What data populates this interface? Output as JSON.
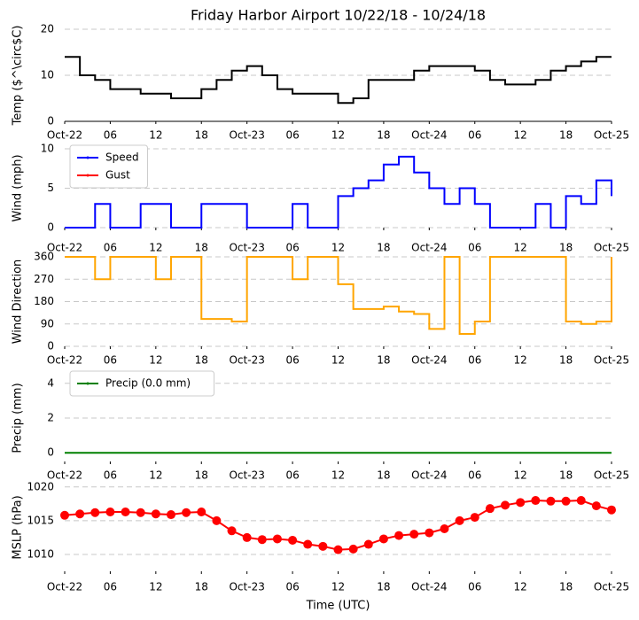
{
  "chart_data": [
    {
      "type": "line",
      "step": true,
      "title": "Friday Harbor Airport 10/22/18 - 10/24/18",
      "ylabel": "Temp ($^\\circ$C)",
      "x": [
        0,
        2,
        4,
        6,
        8,
        10,
        12,
        14,
        16,
        18,
        20,
        22,
        24,
        26,
        28,
        30,
        32,
        34,
        36,
        38,
        40,
        42,
        44,
        46,
        48,
        50,
        52,
        54,
        56,
        58,
        60,
        62,
        64,
        66,
        68,
        70,
        72
      ],
      "xlim": [
        0,
        72
      ],
      "xticks": [
        {
          "value": 0,
          "label": "Oct-22"
        },
        {
          "value": 6,
          "label": "06"
        },
        {
          "value": 12,
          "label": "12"
        },
        {
          "value": 18,
          "label": "18"
        },
        {
          "value": 24,
          "label": "Oct-23"
        },
        {
          "value": 30,
          "label": "06"
        },
        {
          "value": 36,
          "label": "12"
        },
        {
          "value": 42,
          "label": "18"
        },
        {
          "value": 48,
          "label": "Oct-24"
        },
        {
          "value": 54,
          "label": "06"
        },
        {
          "value": 60,
          "label": "12"
        },
        {
          "value": 66,
          "label": "18"
        },
        {
          "value": 72,
          "label": "Oct-25"
        }
      ],
      "ylim": [
        0,
        20
      ],
      "yticks": [
        0,
        10,
        20
      ],
      "grid": true,
      "series": [
        {
          "name": "Temp",
          "color": "#000000",
          "values": [
            14,
            10,
            9,
            7,
            7,
            6,
            6,
            5,
            5,
            7,
            9,
            11,
            12,
            10,
            7,
            6,
            6,
            6,
            4,
            5,
            9,
            9,
            9,
            11,
            12,
            12,
            12,
            11,
            9,
            8,
            8,
            9,
            11,
            12,
            13,
            14,
            14
          ]
        }
      ]
    },
    {
      "type": "line",
      "step": true,
      "ylabel": "Wind (mph)",
      "legend": "upper left",
      "x": [
        0,
        2,
        4,
        6,
        8,
        10,
        12,
        14,
        16,
        18,
        20,
        22,
        24,
        26,
        28,
        30,
        32,
        34,
        36,
        38,
        40,
        42,
        44,
        46,
        48,
        50,
        52,
        54,
        56,
        58,
        60,
        62,
        64,
        66,
        68,
        70,
        72
      ],
      "xlim": [
        0,
        72
      ],
      "xticks": [
        {
          "value": 0,
          "label": "Oct-22"
        },
        {
          "value": 6,
          "label": "06"
        },
        {
          "value": 12,
          "label": "12"
        },
        {
          "value": 18,
          "label": "18"
        },
        {
          "value": 24,
          "label": "Oct-23"
        },
        {
          "value": 30,
          "label": "06"
        },
        {
          "value": 36,
          "label": "12"
        },
        {
          "value": 42,
          "label": "18"
        },
        {
          "value": 48,
          "label": "Oct-24"
        },
        {
          "value": 54,
          "label": "06"
        },
        {
          "value": 60,
          "label": "12"
        },
        {
          "value": 66,
          "label": "18"
        },
        {
          "value": 72,
          "label": "Oct-25"
        }
      ],
      "ylim": [
        0,
        10
      ],
      "yticks": [
        0,
        5,
        10
      ],
      "grid": true,
      "series": [
        {
          "name": "Speed",
          "color": "#0000ff",
          "values": [
            0,
            0,
            3,
            0,
            0,
            3,
            3,
            0,
            0,
            3,
            3,
            3,
            0,
            0,
            0,
            3,
            0,
            0,
            4,
            5,
            6,
            8,
            9,
            7,
            5,
            3,
            5,
            3,
            0,
            0,
            0,
            3,
            0,
            4,
            3,
            6,
            4
          ]
        },
        {
          "name": "Gust",
          "color": "#ff0000",
          "values": [
            null,
            null,
            null,
            null,
            null,
            null,
            null,
            null,
            null,
            null,
            null,
            null,
            null,
            null,
            null,
            null,
            null,
            null,
            null,
            null,
            null,
            null,
            null,
            null,
            null,
            null,
            null,
            null,
            null,
            null,
            null,
            null,
            null,
            null,
            null,
            null,
            null
          ]
        }
      ]
    },
    {
      "type": "line",
      "step": true,
      "ylabel": "Wind Direction",
      "x": [
        0,
        2,
        4,
        6,
        8,
        10,
        12,
        14,
        16,
        18,
        20,
        22,
        24,
        26,
        28,
        30,
        32,
        34,
        36,
        38,
        40,
        42,
        44,
        46,
        48,
        50,
        52,
        54,
        56,
        58,
        60,
        62,
        64,
        66,
        68,
        70,
        72
      ],
      "xlim": [
        0,
        72
      ],
      "xticks": [
        {
          "value": 0,
          "label": "Oct-22"
        },
        {
          "value": 6,
          "label": "06"
        },
        {
          "value": 12,
          "label": "12"
        },
        {
          "value": 18,
          "label": "18"
        },
        {
          "value": 24,
          "label": "Oct-23"
        },
        {
          "value": 30,
          "label": "06"
        },
        {
          "value": 36,
          "label": "12"
        },
        {
          "value": 42,
          "label": "18"
        },
        {
          "value": 48,
          "label": "Oct-24"
        },
        {
          "value": 54,
          "label": "06"
        },
        {
          "value": 60,
          "label": "12"
        },
        {
          "value": 66,
          "label": "18"
        },
        {
          "value": 72,
          "label": "Oct-25"
        }
      ],
      "ylim": [
        0,
        360
      ],
      "yticks": [
        0,
        90,
        180,
        270,
        360
      ],
      "grid": true,
      "series": [
        {
          "name": "Direction",
          "color": "#ffa500",
          "values": [
            360,
            360,
            270,
            360,
            360,
            360,
            270,
            360,
            360,
            110,
            110,
            100,
            360,
            360,
            360,
            270,
            360,
            360,
            250,
            150,
            150,
            160,
            140,
            130,
            70,
            360,
            50,
            100,
            360,
            360,
            360,
            360,
            360,
            100,
            90,
            100,
            360
          ]
        }
      ]
    },
    {
      "type": "line",
      "step": true,
      "ylabel": "Precip (mm)",
      "legend": "upper left",
      "x": [
        0,
        2,
        4,
        6,
        8,
        10,
        12,
        14,
        16,
        18,
        20,
        22,
        24,
        26,
        28,
        30,
        32,
        34,
        36,
        38,
        40,
        42,
        44,
        46,
        48,
        50,
        52,
        54,
        56,
        58,
        60,
        62,
        64,
        66,
        68,
        70,
        72
      ],
      "xlim": [
        0,
        72
      ],
      "xticks": [
        {
          "value": 0,
          "label": "Oct-22"
        },
        {
          "value": 6,
          "label": "06"
        },
        {
          "value": 12,
          "label": "12"
        },
        {
          "value": 18,
          "label": "18"
        },
        {
          "value": 24,
          "label": "Oct-23"
        },
        {
          "value": 30,
          "label": "06"
        },
        {
          "value": 36,
          "label": "12"
        },
        {
          "value": 42,
          "label": "18"
        },
        {
          "value": 48,
          "label": "Oct-24"
        },
        {
          "value": 54,
          "label": "06"
        },
        {
          "value": 60,
          "label": "12"
        },
        {
          "value": 66,
          "label": "18"
        },
        {
          "value": 72,
          "label": "Oct-25"
        }
      ],
      "ylim": [
        -0.5,
        4.5
      ],
      "yticks": [
        0,
        2,
        4
      ],
      "grid": true,
      "series": [
        {
          "name": "Precip (0.0 mm)",
          "color": "#008000",
          "values": [
            0,
            0,
            0,
            0,
            0,
            0,
            0,
            0,
            0,
            0,
            0,
            0,
            0,
            0,
            0,
            0,
            0,
            0,
            0,
            0,
            0,
            0,
            0,
            0,
            0,
            0,
            0,
            0,
            0,
            0,
            0,
            0,
            0,
            0,
            0,
            0,
            0
          ]
        }
      ]
    },
    {
      "type": "line",
      "markers": true,
      "ylabel": "MSLP (hPa)",
      "xlabel": "Time (UTC)",
      "x": [
        0,
        2,
        4,
        6,
        8,
        10,
        12,
        14,
        16,
        18,
        20,
        22,
        24,
        26,
        28,
        30,
        32,
        34,
        36,
        38,
        40,
        42,
        44,
        46,
        48,
        50,
        52,
        54,
        56,
        58,
        60,
        62,
        64,
        66,
        68,
        70,
        72
      ],
      "xlim": [
        0,
        72
      ],
      "xticks": [
        {
          "value": 0,
          "label": "Oct-22"
        },
        {
          "value": 6,
          "label": "06"
        },
        {
          "value": 12,
          "label": "12"
        },
        {
          "value": 18,
          "label": "18"
        },
        {
          "value": 24,
          "label": "Oct-23"
        },
        {
          "value": 30,
          "label": "06"
        },
        {
          "value": 36,
          "label": "12"
        },
        {
          "value": 42,
          "label": "18"
        },
        {
          "value": 48,
          "label": "Oct-24"
        },
        {
          "value": 54,
          "label": "06"
        },
        {
          "value": 60,
          "label": "12"
        },
        {
          "value": 66,
          "label": "18"
        },
        {
          "value": 72,
          "label": "Oct-25"
        }
      ],
      "ylim": [
        1007.5,
        1020.5
      ],
      "yticks": [
        1010,
        1015,
        1020
      ],
      "grid": true,
      "series": [
        {
          "name": "MSLP",
          "color": "#ff0000",
          "values": [
            1015.8,
            1016,
            1016.2,
            1016.3,
            1016.3,
            1016.2,
            1016,
            1015.9,
            1016.2,
            1016.3,
            1015,
            1013.5,
            1012.5,
            1012.2,
            1012.3,
            1012.1,
            1011.5,
            1011.2,
            1010.7,
            1010.8,
            1011.5,
            1012.3,
            1012.8,
            1013,
            1013.2,
            1013.8,
            1015,
            1015.5,
            1016.8,
            1017.3,
            1017.7,
            1018,
            1017.9,
            1017.9,
            1018,
            1017.2,
            1016.6
          ]
        }
      ]
    }
  ]
}
